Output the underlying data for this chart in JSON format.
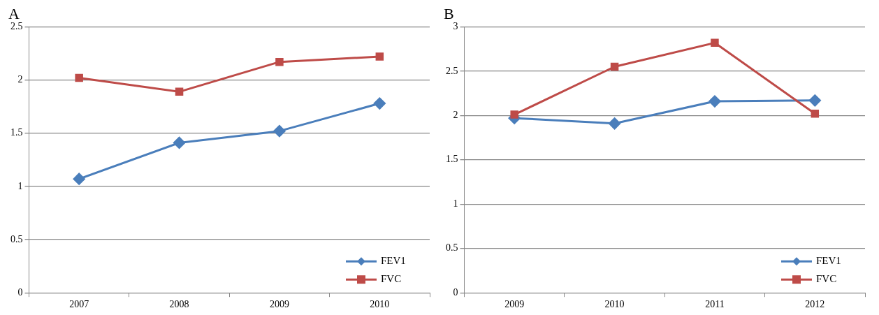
{
  "chart_data": [
    {
      "type": "line",
      "title": "A",
      "categories": [
        "2007",
        "2008",
        "2009",
        "2010"
      ],
      "ylim": [
        0,
        2.5
      ],
      "yticks": [
        0,
        0.5,
        1,
        1.5,
        2,
        2.5
      ],
      "grid": "y",
      "legend": "bottom right",
      "series": [
        {
          "name": "FEV1",
          "color": "#4a7ebb",
          "marker": "diamond",
          "values": [
            1.07,
            1.41,
            1.52,
            1.78
          ]
        },
        {
          "name": "FVC",
          "color": "#be4b48",
          "marker": "square",
          "values": [
            2.02,
            1.89,
            2.17,
            2.22
          ]
        }
      ]
    },
    {
      "type": "line",
      "title": "B",
      "categories": [
        "2009",
        "2010",
        "2011",
        "2012"
      ],
      "ylim": [
        0,
        3
      ],
      "yticks": [
        0,
        0.5,
        1,
        1.5,
        2,
        2.5,
        3
      ],
      "grid": "y",
      "legend": "bottom right",
      "series": [
        {
          "name": "FEV1",
          "color": "#4a7ebb",
          "marker": "diamond",
          "values": [
            1.97,
            1.91,
            2.16,
            2.17
          ]
        },
        {
          "name": "FVC",
          "color": "#be4b48",
          "marker": "square",
          "values": [
            2.01,
            2.55,
            2.82,
            2.02
          ]
        }
      ]
    }
  ]
}
